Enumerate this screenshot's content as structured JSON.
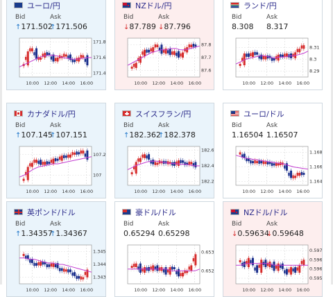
{
  "cards": [
    {
      "pair": "ユーロ/円",
      "bid": "171.502",
      "ask": "171.506",
      "dir": "up",
      "flag": "eu",
      "bid_label": "Bid",
      "ask_label": "Ask",
      "chart": {
        "ticks": [
          "171.8",
          "171.6",
          "171.4"
        ],
        "yrange": [
          171.35,
          171.85
        ],
        "times": [
          "10:00",
          "12:00",
          "14:00",
          "16:00"
        ],
        "ma": [
          171.48,
          171.51,
          171.54,
          171.57,
          171.6,
          171.62,
          171.63,
          171.63,
          171.62,
          171.6,
          171.59,
          171.58,
          171.58,
          171.59,
          171.6,
          171.6
        ],
        "candles": [
          171.5,
          171.68,
          171.72,
          171.58,
          171.6,
          171.66,
          171.64,
          171.55,
          171.6,
          171.62,
          171.64,
          171.57,
          171.55,
          171.6,
          171.63,
          171.5
        ]
      }
    },
    {
      "pair": "NZドル/円",
      "bid": "87.789",
      "ask": "87.796",
      "dir": "down",
      "flag": "nz",
      "bid_label": "Bid",
      "ask_label": "Ask",
      "chart": {
        "ticks": [
          "87.8",
          "87.7",
          "87.6"
        ],
        "yrange": [
          87.55,
          87.85
        ],
        "times": [
          "10:00",
          "12:00",
          "14:00",
          "16:00"
        ],
        "ma": [
          87.64,
          87.66,
          87.68,
          87.7,
          87.72,
          87.74,
          87.75,
          87.76,
          87.76,
          87.77,
          87.77,
          87.76,
          87.76,
          87.77,
          87.78,
          87.79
        ],
        "candles": [
          87.62,
          87.66,
          87.71,
          87.76,
          87.74,
          87.78,
          87.8,
          87.73,
          87.77,
          87.72,
          87.75,
          87.7,
          87.74,
          87.78,
          87.8,
          87.79
        ]
      }
    },
    {
      "pair": "ランド/円",
      "bid": "8.308",
      "ask": "8.317",
      "dir": "flat",
      "flag": "za",
      "bid_label": "Bid",
      "ask_label": "Ask",
      "chart": {
        "ticks": [
          "8.31",
          "8.3",
          "8.29"
        ],
        "yrange": [
          8.285,
          8.318
        ],
        "times": [
          "10:00",
          "12:00",
          "14:00",
          "16:00"
        ],
        "ma": [
          8.296,
          8.298,
          8.3,
          8.301,
          8.302,
          8.303,
          8.303,
          8.302,
          8.301,
          8.302,
          8.302,
          8.303,
          8.303,
          8.304,
          8.305,
          8.307
        ],
        "candles": [
          8.295,
          8.305,
          8.302,
          8.306,
          8.304,
          8.3,
          8.303,
          8.301,
          8.299,
          8.304,
          8.302,
          8.305,
          8.301,
          8.306,
          8.309,
          8.312
        ]
      }
    },
    {
      "pair": "カナダドル/円",
      "bid": "107.145",
      "ask": "107.151",
      "dir": "up",
      "flag": "ca",
      "bid_label": "Bid",
      "ask_label": "Ask",
      "chart": {
        "ticks": [
          "107.2",
          "107"
        ],
        "yrange": [
          106.9,
          107.28
        ],
        "times": [
          "10:00",
          "12:00",
          "14:00",
          "16:00"
        ],
        "ma": [
          106.98,
          107.0,
          107.03,
          107.06,
          107.08,
          107.09,
          107.1,
          107.11,
          107.11,
          107.12,
          107.13,
          107.14,
          107.15,
          107.16,
          107.17,
          107.18
        ],
        "candles": [
          106.95,
          107.08,
          107.12,
          107.15,
          107.1,
          107.13,
          107.11,
          107.16,
          107.14,
          107.19,
          107.17,
          107.2,
          107.22,
          107.21,
          107.24,
          107.15
        ]
      }
    },
    {
      "pair": "スイスフラン/円",
      "bid": "182.362",
      "ask": "182.378",
      "dir": "up",
      "flag": "ch",
      "bid_label": "Bid",
      "ask_label": "Ask",
      "chart": {
        "ticks": [
          "182.6",
          "182.4",
          "182.2"
        ],
        "yrange": [
          182.15,
          182.65
        ],
        "times": [
          "10:00",
          "12:00",
          "14:00",
          "16:00"
        ],
        "ma": [
          182.35,
          182.38,
          182.41,
          182.43,
          182.45,
          182.46,
          182.46,
          182.45,
          182.44,
          182.43,
          182.43,
          182.42,
          182.42,
          182.41,
          182.4,
          182.4
        ],
        "candles": [
          182.3,
          182.45,
          182.5,
          182.55,
          182.48,
          182.42,
          182.44,
          182.46,
          182.43,
          182.45,
          182.4,
          182.47,
          182.44,
          182.42,
          182.45,
          182.38
        ]
      }
    },
    {
      "pair": "ユーロ/ドル",
      "bid": "1.16504",
      "ask": "1.16507",
      "dir": "flat",
      "flag": "us",
      "bid_label": "Bid",
      "ask_label": "Ask",
      "chart": {
        "ticks": [
          "1.168",
          "1.166",
          "1.164"
        ],
        "yrange": [
          1.1635,
          1.1688
        ],
        "times": [
          "10:00",
          "12:00",
          "14:00",
          "16:00"
        ],
        "ma": [
          1.1676,
          1.1674,
          1.1672,
          1.1671,
          1.167,
          1.1669,
          1.1668,
          1.1667,
          1.1666,
          1.1665,
          1.1664,
          1.1662,
          1.166,
          1.1659,
          1.1658,
          1.1657
        ],
        "candles": [
          1.1678,
          1.1672,
          1.1668,
          1.1666,
          1.1668,
          1.1665,
          1.1667,
          1.1664,
          1.1663,
          1.1664,
          1.1665,
          1.1655,
          1.1645,
          1.1648,
          1.1652,
          1.165
        ]
      }
    },
    {
      "pair": "英ポンド/ドル",
      "bid": "1.34357",
      "ask": "1.34367",
      "dir": "up",
      "flag": "uk",
      "bid_label": "Bid",
      "ask_label": "Ask",
      "chart": {
        "ticks": [
          "1.345",
          "1.344",
          "1.343"
        ],
        "yrange": [
          1.3425,
          1.3455
        ],
        "times": [
          "10:00",
          "12:00",
          "14:00",
          "16:00"
        ],
        "ma": [
          1.3445,
          1.3445,
          1.3444,
          1.3444,
          1.3443,
          1.3442,
          1.3441,
          1.3441,
          1.344,
          1.344,
          1.3439,
          1.3438,
          1.3437,
          1.3436,
          1.3435,
          1.3434
        ],
        "candles": [
          1.3447,
          1.3444,
          1.3441,
          1.3439,
          1.3442,
          1.344,
          1.3438,
          1.3441,
          1.3437,
          1.3435,
          1.3436,
          1.3434,
          1.3431,
          1.3429,
          1.343,
          1.3436
        ]
      }
    },
    {
      "pair": "豪ドル/ドル",
      "bid": "0.65294",
      "ask": "0.65298",
      "dir": "flat",
      "flag": "au",
      "bid_label": "Bid",
      "ask_label": "Ask",
      "chart": {
        "ticks": [
          "0.653",
          "0.652"
        ],
        "yrange": [
          0.6513,
          0.6534
        ],
        "times": [
          "10:00",
          "12:00",
          "14:00",
          "16:00"
        ],
        "ma": [
          0.6521,
          0.6521,
          0.6521,
          0.6521,
          0.6521,
          0.6521,
          0.6521,
          0.6521,
          0.6521,
          0.652,
          0.652,
          0.652,
          0.652,
          0.652,
          0.652,
          0.6521
        ],
        "candles": [
          0.6522,
          0.6524,
          0.6519,
          0.6522,
          0.652,
          0.6523,
          0.652,
          0.6522,
          0.6518,
          0.6522,
          0.6521,
          0.6517,
          0.6519,
          0.652,
          0.6523,
          0.6529
        ]
      }
    },
    {
      "pair": "NZドル/ドル",
      "bid": "0.59634",
      "ask": "0.59648",
      "dir": "down",
      "flag": "nz",
      "bid_label": "Bid",
      "ask_label": "Ask",
      "chart": {
        "ticks": [
          "0.597",
          "0.5965",
          "0.596",
          "0.5955"
        ],
        "yrange": [
          0.5952,
          0.5973
        ],
        "times": [
          "10:00",
          "12:00",
          "14:00",
          "16:00"
        ],
        "ma": [
          0.5962,
          0.5962,
          0.5963,
          0.5963,
          0.5963,
          0.5963,
          0.5963,
          0.5963,
          0.5962,
          0.5962,
          0.5962,
          0.5962,
          0.5962,
          0.5962,
          0.5962,
          0.5962
        ],
        "candles": [
          0.5964,
          0.5961,
          0.5966,
          0.5962,
          0.5958,
          0.5965,
          0.5961,
          0.5964,
          0.5959,
          0.5963,
          0.596,
          0.5957,
          0.5961,
          0.5958,
          0.5962,
          0.5965
        ]
      }
    }
  ]
}
